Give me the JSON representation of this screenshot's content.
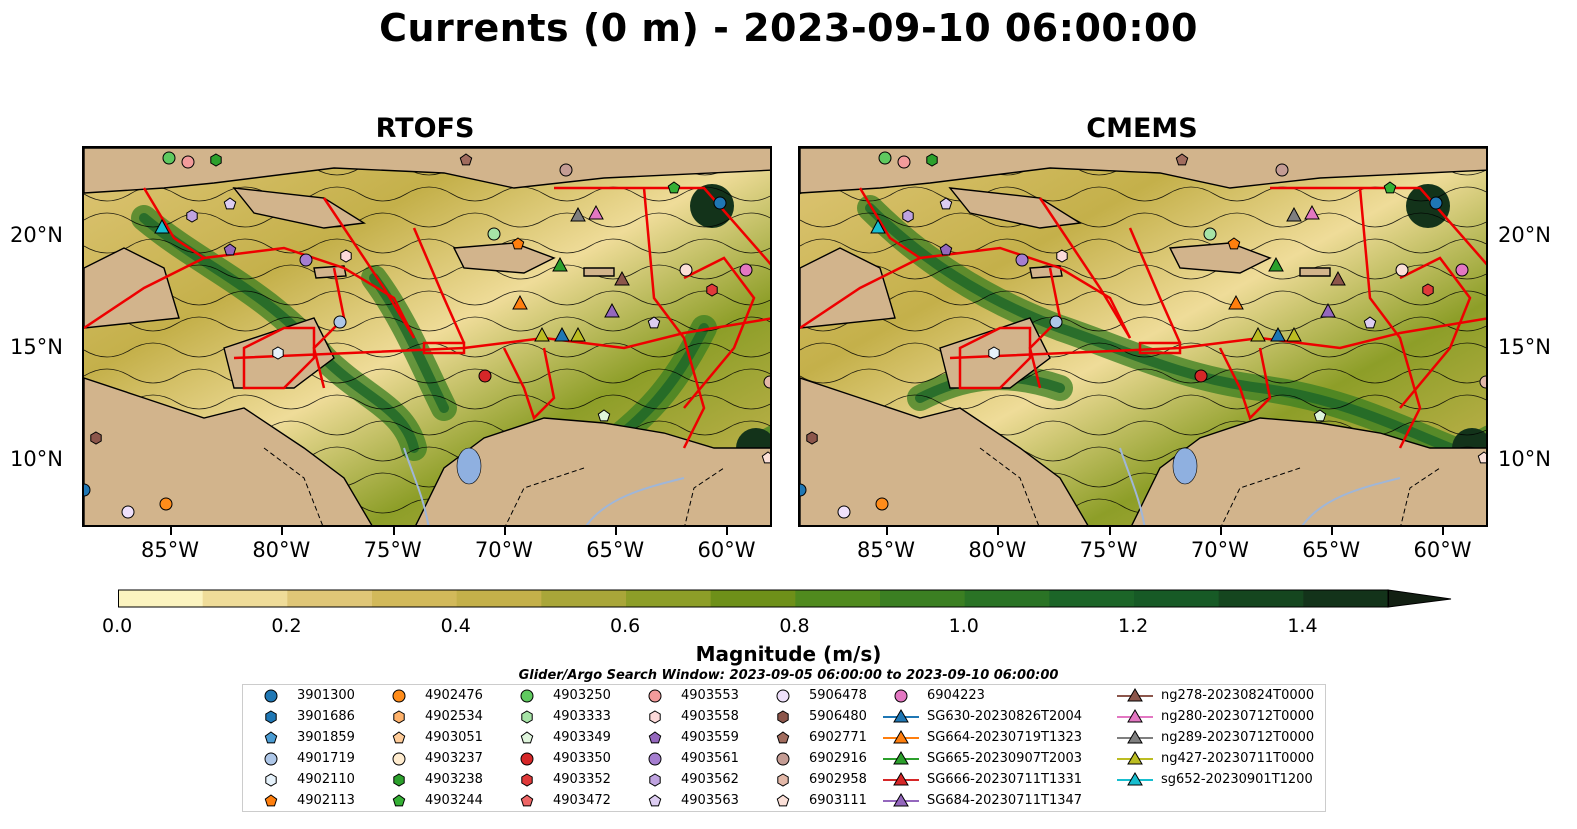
{
  "title": "Currents (0 m) - 2023-09-10 06:00:00",
  "panels": [
    {
      "title": "RTOFS"
    },
    {
      "title": "CMEMS"
    }
  ],
  "axes": {
    "lon_labels": [
      "85°W",
      "80°W",
      "75°W",
      "70°W",
      "65°W",
      "60°W"
    ],
    "lat_labels": [
      "20°N",
      "15°N",
      "10°N"
    ]
  },
  "colorbar": {
    "title": "Magnitude (m/s)",
    "tick_labels": [
      "0.0",
      "0.2",
      "0.4",
      "0.6",
      "0.8",
      "1.0",
      "1.2",
      "1.4"
    ],
    "colors": [
      "#fcf4c0",
      "#efdc99",
      "#dfc677",
      "#d2b95a",
      "#c4b04a",
      "#a9a639",
      "#8d9e28",
      "#6e9019",
      "#508a1e",
      "#3b7f22",
      "#2a7325",
      "#1c6528",
      "#175a26",
      "#15461f",
      "#13331a",
      "#121f12"
    ],
    "extend": "max"
  },
  "legend": {
    "subtitle": "Glider/Argo Search Window: 2023-09-05 06:00:00 to 2023-09-10 06:00:00",
    "columns": [
      [
        {
          "label": "3901300",
          "marker": "circle",
          "color": "#1f77b4"
        },
        {
          "label": "3901686",
          "marker": "hexagon",
          "color": "#1f77b4"
        },
        {
          "label": "3901859",
          "marker": "pentagon",
          "color": "#4b9cd3"
        },
        {
          "label": "4901719",
          "marker": "circle",
          "color": "#aec7e8"
        },
        {
          "label": "4902110",
          "marker": "hexagon",
          "color": "#e6f2fb"
        },
        {
          "label": "4902113",
          "marker": "pentagon",
          "color": "#ff7f0e"
        }
      ],
      [
        {
          "label": "4902476",
          "marker": "circle",
          "color": "#ff8c1a"
        },
        {
          "label": "4902534",
          "marker": "hexagon",
          "color": "#ffb26b"
        },
        {
          "label": "4903051",
          "marker": "pentagon",
          "color": "#ffcc99"
        },
        {
          "label": "4903237",
          "marker": "circle",
          "color": "#ffeccf"
        },
        {
          "label": "4903238",
          "marker": "hexagon",
          "color": "#2ca02c"
        },
        {
          "label": "4903244",
          "marker": "pentagon",
          "color": "#35b035"
        }
      ],
      [
        {
          "label": "4903250",
          "marker": "circle",
          "color": "#5fc95f"
        },
        {
          "label": "4903333",
          "marker": "hexagon",
          "color": "#a6e3a6"
        },
        {
          "label": "4903349",
          "marker": "pentagon",
          "color": "#dff5dc"
        },
        {
          "label": "4903350",
          "marker": "circle",
          "color": "#d62728"
        },
        {
          "label": "4903352",
          "marker": "hexagon",
          "color": "#e03a3a"
        },
        {
          "label": "4903472",
          "marker": "pentagon",
          "color": "#ee6666"
        }
      ],
      [
        {
          "label": "4903553",
          "marker": "circle",
          "color": "#f29b9b"
        },
        {
          "label": "4903558",
          "marker": "hexagon",
          "color": "#fcdada"
        },
        {
          "label": "4903559",
          "marker": "pentagon",
          "color": "#9467bd"
        },
        {
          "label": "4903561",
          "marker": "circle",
          "color": "#a57ed0"
        },
        {
          "label": "4903562",
          "marker": "hexagon",
          "color": "#bfa3e0"
        },
        {
          "label": "4903563",
          "marker": "pentagon",
          "color": "#ddcdf2"
        }
      ],
      [
        {
          "label": "5906478",
          "marker": "circle",
          "color": "#efe0fb"
        },
        {
          "label": "5906480",
          "marker": "hexagon",
          "color": "#8c564b"
        },
        {
          "label": "6902771",
          "marker": "pentagon",
          "color": "#a16c5e"
        },
        {
          "label": "6902916",
          "marker": "circle",
          "color": "#c49c94"
        },
        {
          "label": "6902958",
          "marker": "hexagon",
          "color": "#e3b8a8"
        },
        {
          "label": "6903111",
          "marker": "pentagon",
          "color": "#fbe0d8"
        }
      ],
      [
        {
          "label": "6904223",
          "marker": "circle",
          "color": "#e377c2"
        },
        {
          "label": "SG630-20230826T2004",
          "marker": "triangle-line",
          "color": "#1f77b4"
        },
        {
          "label": "SG664-20230719T1323",
          "marker": "triangle-line",
          "color": "#ff7f0e"
        },
        {
          "label": "SG665-20230907T2003",
          "marker": "triangle-line",
          "color": "#2ca02c"
        },
        {
          "label": "SG666-20230711T1331",
          "marker": "triangle-line",
          "color": "#d62728"
        },
        {
          "label": "SG684-20230711T1347",
          "marker": "triangle-line",
          "color": "#9467bd"
        }
      ],
      [
        {
          "label": "ng278-20230824T0000",
          "marker": "triangle-line",
          "color": "#8c564b"
        },
        {
          "label": "ng280-20230712T0000",
          "marker": "triangle-line",
          "color": "#e377c2"
        },
        {
          "label": "ng289-20230712T0000",
          "marker": "triangle-line",
          "color": "#7f7f7f"
        },
        {
          "label": "ng427-20230711T0000",
          "marker": "triangle-line",
          "color": "#bcbd22"
        },
        {
          "label": "sg652-20230901T1200",
          "marker": "triangle-line",
          "color": "#17becf"
        }
      ]
    ]
  },
  "map_colors": {
    "land": "#d2b48c",
    "boundary": "#ee0000",
    "river": "#9fb6d8",
    "lake": "#8fb0e0"
  },
  "map_extent": {
    "lon": [
      -89,
      -58
    ],
    "lat": [
      7,
      24
    ]
  }
}
